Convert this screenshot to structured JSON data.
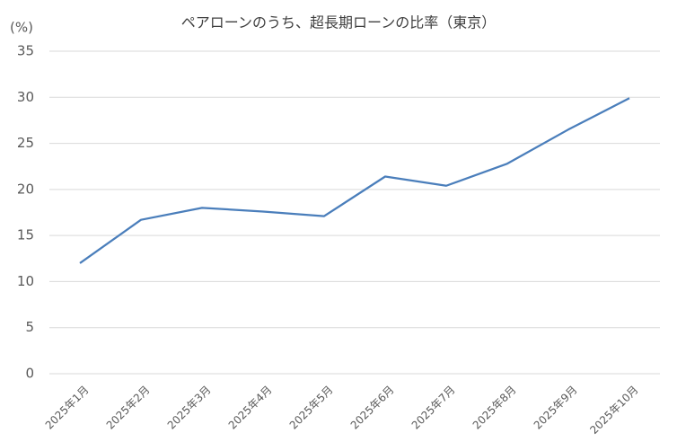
{
  "chart_data": {
    "type": "line",
    "title": "ペアローンのうち、超長期ローンの比率（東京）",
    "y_axis_label": "(%)",
    "categories": [
      "2025年1月",
      "2025年2月",
      "2025年3月",
      "2025年4月",
      "2025年5月",
      "2025年6月",
      "2025年7月",
      "2025年8月",
      "2025年9月",
      "2025年10月"
    ],
    "values": [
      12,
      16.7,
      18,
      17.6,
      17.1,
      21.4,
      20.4,
      22.8,
      26.5,
      29.9
    ],
    "color": "#4a7ebb",
    "ylim": [
      0,
      35
    ],
    "yticks": [
      0,
      5,
      10,
      15,
      20,
      25,
      30,
      35
    ],
    "grid": true
  }
}
